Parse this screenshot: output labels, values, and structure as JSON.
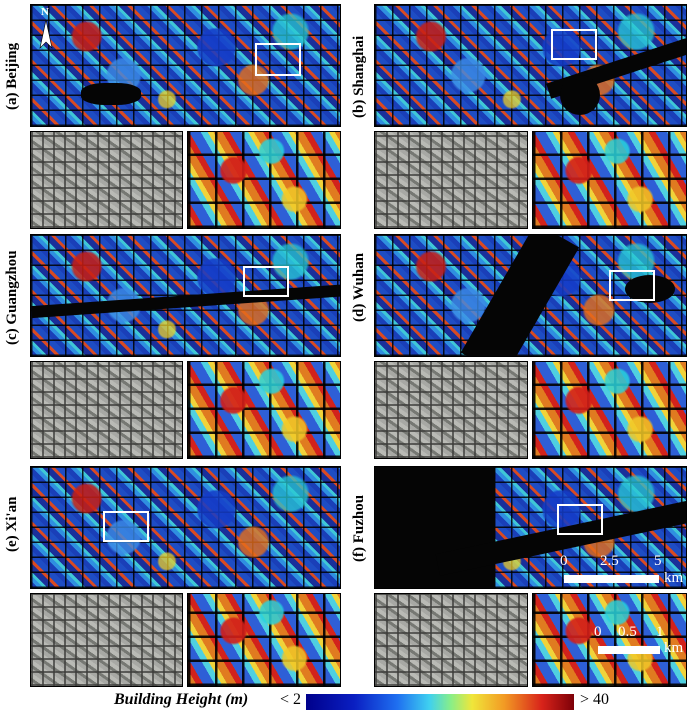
{
  "panels": [
    {
      "id": "a",
      "label": "(a) Beijing"
    },
    {
      "id": "b",
      "label": "(b) Shanghai"
    },
    {
      "id": "c",
      "label": "(c) Guangzhou"
    },
    {
      "id": "d",
      "label": "(d) Wuhan"
    },
    {
      "id": "e",
      "label": "(e) Xi'an"
    },
    {
      "id": "f",
      "label": "(f) Fuzhou"
    }
  ],
  "north_arrow": "N",
  "scale_main": {
    "ticks": [
      "0",
      "2.5",
      "5"
    ],
    "unit": "km"
  },
  "scale_inset": {
    "ticks": [
      "0",
      "0.5",
      "1"
    ],
    "unit": "km"
  },
  "legend": {
    "title": "Building Height (m)",
    "min_label": "< 2",
    "max_label": "> 40",
    "colormap": [
      "#00008b",
      "#1f6ff0",
      "#3fd0f0",
      "#f0e63a",
      "#f29a24",
      "#d8231a",
      "#7d0008"
    ]
  }
}
